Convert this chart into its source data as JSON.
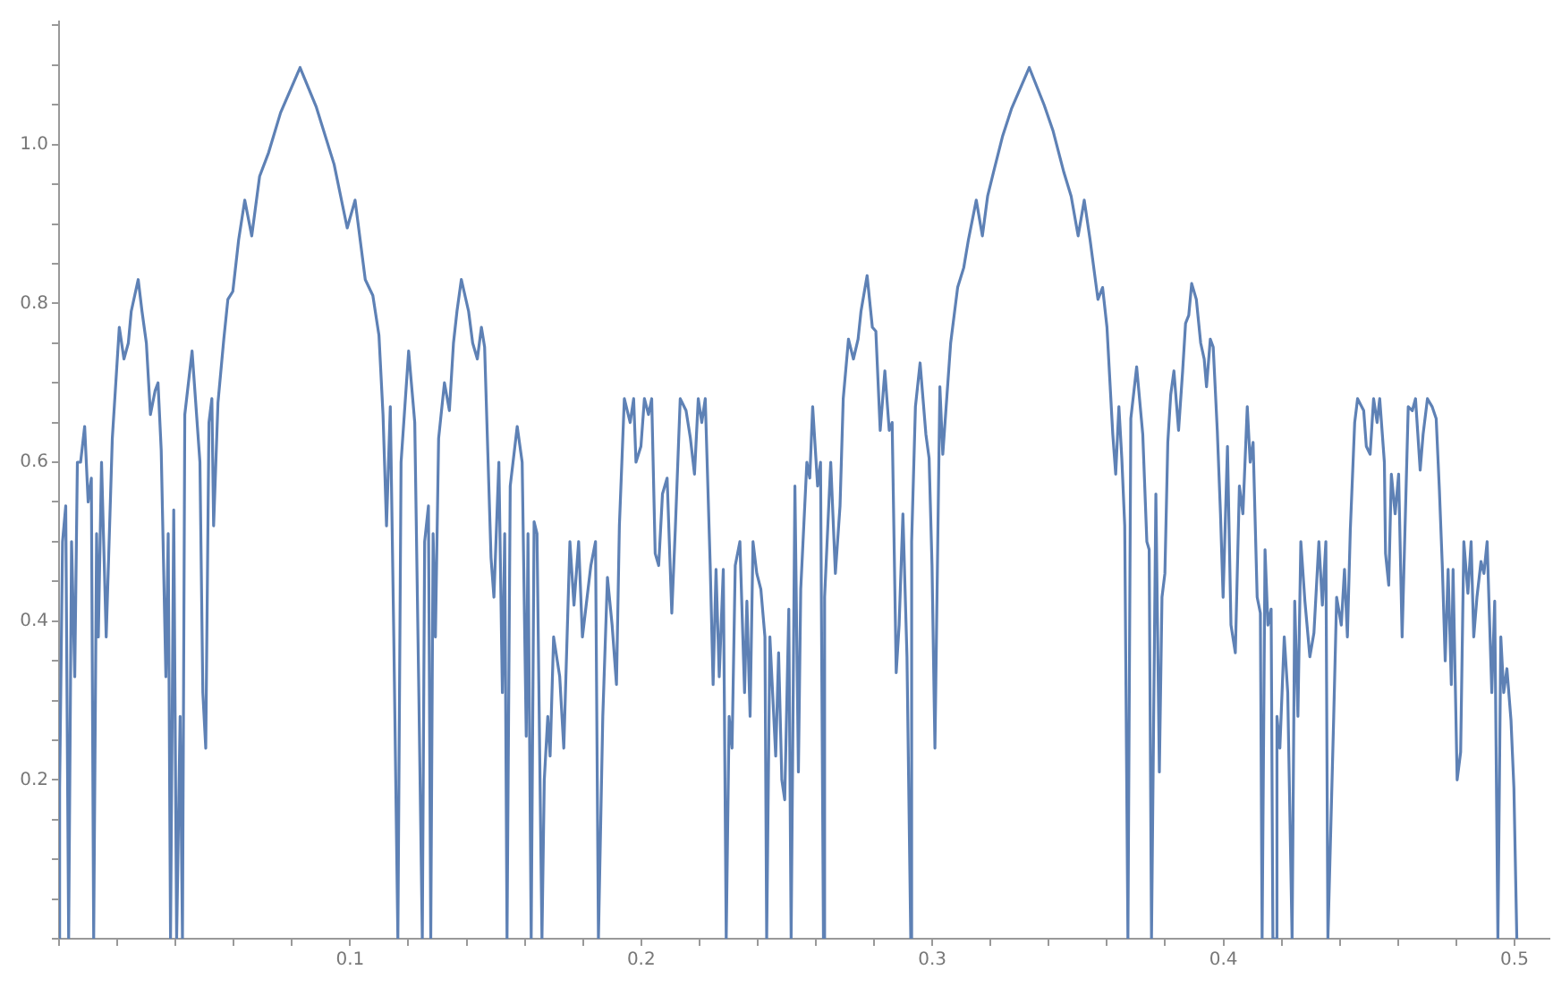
{
  "chart_data": {
    "type": "line",
    "xlim": [
      0,
      0.512
    ],
    "ylim": [
      0,
      1.155
    ],
    "xticks": [
      {
        "value": 0,
        "label": null
      },
      {
        "value": 0.02,
        "label": null
      },
      {
        "value": 0.04,
        "label": null
      },
      {
        "value": 0.06,
        "label": null
      },
      {
        "value": 0.08,
        "label": null
      },
      0.1,
      {
        "value": 0.12,
        "label": null
      },
      {
        "value": 0.14,
        "label": null
      },
      {
        "value": 0.16,
        "label": null
      },
      {
        "value": 0.18,
        "label": null
      },
      0.2,
      {
        "value": 0.22,
        "label": null
      },
      {
        "value": 0.24,
        "label": null
      },
      {
        "value": 0.26,
        "label": null
      },
      {
        "value": 0.28,
        "label": null
      },
      0.3,
      {
        "value": 0.32,
        "label": null
      },
      {
        "value": 0.34,
        "label": null
      },
      {
        "value": 0.36,
        "label": null
      },
      {
        "value": 0.38,
        "label": null
      },
      0.4,
      {
        "value": 0.42,
        "label": null
      },
      {
        "value": 0.44,
        "label": null
      },
      {
        "value": 0.46,
        "label": null
      },
      {
        "value": 0.48,
        "label": null
      },
      0.5
    ],
    "yticks": [
      {
        "value": 0,
        "label": null
      },
      {
        "value": 0.05,
        "label": null
      },
      {
        "value": 0.1,
        "label": null
      },
      {
        "value": 0.15,
        "label": null
      },
      0.2,
      {
        "value": 0.25,
        "label": null
      },
      {
        "value": 0.3,
        "label": null
      },
      {
        "value": 0.35,
        "label": null
      },
      0.4,
      {
        "value": 0.45,
        "label": null
      },
      {
        "value": 0.5,
        "label": null
      },
      {
        "value": 0.55,
        "label": null
      },
      0.6,
      {
        "value": 0.65,
        "label": null
      },
      {
        "value": 0.7,
        "label": null
      },
      {
        "value": 0.75,
        "label": null
      },
      0.8,
      {
        "value": 0.85,
        "label": null
      },
      {
        "value": 0.9,
        "label": null
      },
      {
        "value": 0.95,
        "label": null
      },
      {
        "value": 1,
        "label": "1.0"
      },
      {
        "value": 1.05,
        "label": null
      },
      {
        "value": 1.1,
        "label": null
      },
      {
        "value": 1.15,
        "label": null
      }
    ],
    "grid": false,
    "legend": false,
    "marker": "none",
    "line_style": "solid",
    "series": [
      {
        "color": "#5e81b5",
        "x": [
          0,
          0.0002,
          0.0012,
          0.0023,
          0.0033,
          0.0043,
          0.0054,
          0.0063,
          0.0074,
          0.0088,
          0.01,
          0.0111,
          0.0119,
          0.0129,
          0.0135,
          0.0146,
          0.0162,
          0.0183,
          0.0207,
          0.0223,
          0.0238,
          0.0248,
          0.0272,
          0.0285,
          0.03,
          0.0314,
          0.033,
          0.034,
          0.0351,
          0.0367,
          0.0375,
          0.0383,
          0.0394,
          0.0404,
          0.0416,
          0.0424,
          0.0432,
          0.0457,
          0.0484,
          0.0494,
          0.0504,
          0.0515,
          0.0525,
          0.0531,
          0.0546,
          0.0566,
          0.058,
          0.0597,
          0.0617,
          0.0638,
          0.0662,
          0.0689,
          0.072,
          0.0761,
          0.0828,
          0.0884,
          0.0945,
          0.099,
          0.1017,
          0.1052,
          0.1078,
          0.1099,
          0.1113,
          0.1125,
          0.1138,
          0.115,
          0.1164,
          0.1175,
          0.1201,
          0.1222,
          0.1236,
          0.1248,
          0.1256,
          0.1269,
          0.1277,
          0.1285,
          0.1293,
          0.1304,
          0.1324,
          0.1341,
          0.1355,
          0.1367,
          0.1382,
          0.1407,
          0.1421,
          0.1437,
          0.1451,
          0.1462,
          0.1484,
          0.1494,
          0.1511,
          0.1523,
          0.1531,
          0.1539,
          0.155,
          0.1574,
          0.1591,
          0.1605,
          0.1611,
          0.1622,
          0.1632,
          0.1642,
          0.1659,
          0.1667,
          0.1679,
          0.1687,
          0.1699,
          0.172,
          0.1734,
          0.1755,
          0.1769,
          0.1785,
          0.1798,
          0.1827,
          0.1843,
          0.1853,
          0.1868,
          0.1884,
          0.19,
          0.1915,
          0.1925,
          0.1942,
          0.1962,
          0.1974,
          0.1982,
          0.1999,
          0.2011,
          0.2025,
          0.2036,
          0.2048,
          0.206,
          0.2073,
          0.2089,
          0.2105,
          0.2117,
          0.2134,
          0.2154,
          0.2169,
          0.2183,
          0.2196,
          0.2208,
          0.222,
          0.2237,
          0.2247,
          0.2257,
          0.2268,
          0.2282,
          0.2292,
          0.2302,
          0.2312,
          0.2323,
          0.2339,
          0.2355,
          0.2363,
          0.2374,
          0.2384,
          0.2397,
          0.2411,
          0.2425,
          0.2431,
          0.2442,
          0.2462,
          0.2472,
          0.2483,
          0.2493,
          0.2507,
          0.2515,
          0.2528,
          0.254,
          0.2548,
          0.2569,
          0.2579,
          0.2589,
          0.2606,
          0.2616,
          0.2626,
          0.263,
          0.2651,
          0.2667,
          0.2683,
          0.2694,
          0.2712,
          0.2729,
          0.2745,
          0.2755,
          0.2776,
          0.2794,
          0.2806,
          0.2821,
          0.2837,
          0.2852,
          0.2862,
          0.2876,
          0.2886,
          0.2899,
          0.2913,
          0.2926,
          0.2929,
          0.2942,
          0.2958,
          0.2978,
          0.2989,
          0.2999,
          0.3009,
          0.3026,
          0.3036,
          0.3063,
          0.3087,
          0.3108,
          0.3124,
          0.3151,
          0.3172,
          0.319,
          0.321,
          0.3241,
          0.3272,
          0.3333,
          0.3384,
          0.3415,
          0.3452,
          0.3477,
          0.3501,
          0.3522,
          0.3542,
          0.3569,
          0.3585,
          0.36,
          0.362,
          0.363,
          0.3641,
          0.3651,
          0.3661,
          0.3672,
          0.3682,
          0.3702,
          0.3723,
          0.3737,
          0.3745,
          0.3753,
          0.3768,
          0.378,
          0.3789,
          0.3799,
          0.3809,
          0.3819,
          0.383,
          0.3846,
          0.386,
          0.387,
          0.3881,
          0.3891,
          0.3907,
          0.3922,
          0.3934,
          0.3942,
          0.3955,
          0.3965,
          0.3979,
          0.399,
          0.3999,
          0.4014,
          0.4026,
          0.4041,
          0.4055,
          0.4067,
          0.4082,
          0.4092,
          0.4102,
          0.4116,
          0.4127,
          0.4133,
          0.4143,
          0.4153,
          0.4164,
          0.417,
          0.418,
          0.4184,
          0.4194,
          0.4209,
          0.4221,
          0.4236,
          0.4245,
          0.4256,
          0.4266,
          0.428,
          0.4297,
          0.4311,
          0.4328,
          0.434,
          0.4352,
          0.4359,
          0.4379,
          0.4389,
          0.4405,
          0.4416,
          0.4426,
          0.4436,
          0.4451,
          0.4461,
          0.4482,
          0.4491,
          0.4504,
          0.4516,
          0.4528,
          0.4537,
          0.4553,
          0.4557,
          0.4568,
          0.4577,
          0.459,
          0.4602,
          0.4614,
          0.4635,
          0.4649,
          0.466,
          0.4676,
          0.4686,
          0.4701,
          0.4717,
          0.4731,
          0.4742,
          0.4752,
          0.4762,
          0.4772,
          0.4783,
          0.4789,
          0.4803,
          0.4815,
          0.4826,
          0.484,
          0.4851,
          0.486,
          0.4871,
          0.4885,
          0.4895,
          0.4906,
          0.4922,
          0.4932,
          0.4943,
          0.4953,
          0.4963,
          0.4974,
          0.4988,
          0.4998,
          0.5008
        ],
        "values": [
          0,
          0.19,
          0.5,
          0.545,
          0,
          0.5,
          0.33,
          0.6,
          0.6,
          0.645,
          0.55,
          0.58,
          0,
          0.51,
          0.38,
          0.6,
          0.38,
          0.63,
          0.77,
          0.73,
          0.75,
          0.79,
          0.83,
          0.79,
          0.75,
          0.66,
          0.69,
          0.7,
          0.615,
          0.33,
          0.51,
          0,
          0.54,
          0,
          0.28,
          0,
          0.66,
          0.74,
          0.6,
          0.31,
          0.24,
          0.65,
          0.68,
          0.52,
          0.675,
          0.755,
          0.805,
          0.815,
          0.88,
          0.93,
          0.885,
          0.96,
          0.99,
          1.04,
          1.097,
          1.047,
          0.975,
          0.895,
          0.93,
          0.83,
          0.81,
          0.76,
          0.66,
          0.52,
          0.67,
          0.38,
          0,
          0.6,
          0.74,
          0.65,
          0.31,
          0,
          0.5,
          0.545,
          0,
          0.51,
          0.38,
          0.63,
          0.7,
          0.665,
          0.75,
          0.79,
          0.83,
          0.79,
          0.75,
          0.73,
          0.77,
          0.745,
          0.48,
          0.43,
          0.6,
          0.31,
          0.51,
          0,
          0.57,
          0.645,
          0.6,
          0.255,
          0.51,
          0,
          0.525,
          0.51,
          0,
          0.2,
          0.28,
          0.23,
          0.38,
          0.33,
          0.24,
          0.5,
          0.42,
          0.5,
          0.38,
          0.47,
          0.5,
          0,
          0.28,
          0.455,
          0.395,
          0.32,
          0.52,
          0.68,
          0.65,
          0.68,
          0.6,
          0.62,
          0.68,
          0.66,
          0.68,
          0.485,
          0.47,
          0.56,
          0.58,
          0.41,
          0.515,
          0.68,
          0.665,
          0.63,
          0.585,
          0.68,
          0.65,
          0.68,
          0.47,
          0.32,
          0.465,
          0.33,
          0.465,
          0,
          0.28,
          0.24,
          0.47,
          0.5,
          0.31,
          0.425,
          0.28,
          0.5,
          0.46,
          0.44,
          0.38,
          0,
          0.38,
          0.23,
          0.36,
          0.2,
          0.175,
          0.415,
          0,
          0.57,
          0.21,
          0.44,
          0.6,
          0.58,
          0.67,
          0.57,
          0.6,
          0,
          0.43,
          0.6,
          0.46,
          0.545,
          0.68,
          0.755,
          0.73,
          0.755,
          0.79,
          0.835,
          0.77,
          0.765,
          0.64,
          0.715,
          0.64,
          0.65,
          0.335,
          0.395,
          0.535,
          0.355,
          0,
          0.5,
          0.67,
          0.725,
          0.635,
          0.605,
          0.47,
          0.24,
          0.695,
          0.61,
          0.75,
          0.82,
          0.845,
          0.88,
          0.93,
          0.885,
          0.935,
          0.965,
          1.01,
          1.045,
          1.097,
          1.05,
          1.017,
          0.965,
          0.935,
          0.885,
          0.93,
          0.88,
          0.805,
          0.82,
          0.77,
          0.635,
          0.585,
          0.67,
          0.605,
          0.52,
          0,
          0.655,
          0.72,
          0.635,
          0.5,
          0.49,
          0,
          0.56,
          0.21,
          0.43,
          0.46,
          0.625,
          0.685,
          0.715,
          0.64,
          0.715,
          0.775,
          0.785,
          0.825,
          0.805,
          0.75,
          0.73,
          0.695,
          0.755,
          0.745,
          0.64,
          0.535,
          0.43,
          0.62,
          0.395,
          0.36,
          0.57,
          0.535,
          0.67,
          0.6,
          0.625,
          0.43,
          0.41,
          0,
          0.49,
          0.395,
          0.415,
          0,
          0,
          0.28,
          0.24,
          0.38,
          0.31,
          0,
          0.425,
          0.28,
          0.5,
          0.425,
          0.355,
          0.385,
          0.5,
          0.42,
          0.5,
          0,
          0.28,
          0.43,
          0.395,
          0.465,
          0.38,
          0.515,
          0.65,
          0.68,
          0.665,
          0.62,
          0.61,
          0.68,
          0.65,
          0.68,
          0.6,
          0.485,
          0.445,
          0.585,
          0.535,
          0.585,
          0.38,
          0.67,
          0.665,
          0.68,
          0.59,
          0.635,
          0.68,
          0.67,
          0.655,
          0.565,
          0.47,
          0.35,
          0.465,
          0.32,
          0.465,
          0.2,
          0.235,
          0.5,
          0.435,
          0.5,
          0.38,
          0.43,
          0.475,
          0.46,
          0.5,
          0.31,
          0.425,
          0,
          0.38,
          0.31,
          0.34,
          0.275,
          0.19,
          0
        ]
      }
    ]
  }
}
